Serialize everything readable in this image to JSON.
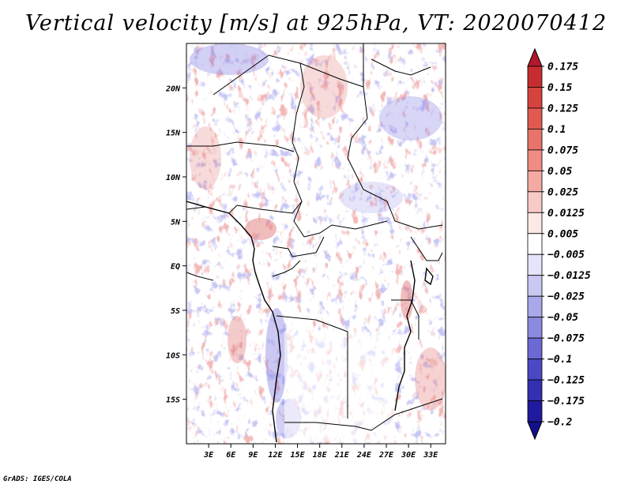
{
  "title": "Vertical velocity [m/s] at 925hPa, VT: 2020070412",
  "footer": "GrADS: IGES/COLA",
  "map": {
    "lon_range": [
      0,
      35
    ],
    "lat_range": [
      -20,
      25
    ],
    "lat_ticks": [
      {
        "value": 20,
        "label": "20N"
      },
      {
        "value": 15,
        "label": "15N"
      },
      {
        "value": 10,
        "label": "10N"
      },
      {
        "value": 5,
        "label": "5N"
      },
      {
        "value": 0,
        "label": "EQ"
      },
      {
        "value": -5,
        "label": "5S"
      },
      {
        "value": -10,
        "label": "10S"
      },
      {
        "value": -15,
        "label": "15S"
      }
    ],
    "lon_ticks": [
      {
        "value": 3,
        "label": "3E"
      },
      {
        "value": 6,
        "label": "6E"
      },
      {
        "value": 9,
        "label": "9E"
      },
      {
        "value": 12,
        "label": "12E"
      },
      {
        "value": 15,
        "label": "15E"
      },
      {
        "value": 18,
        "label": "18E"
      },
      {
        "value": 21,
        "label": "21E"
      },
      {
        "value": 24,
        "label": "24E"
      },
      {
        "value": 27,
        "label": "27E"
      },
      {
        "value": 30,
        "label": "30E"
      },
      {
        "value": 33,
        "label": "33E"
      }
    ]
  },
  "colorbar": {
    "levels": [
      "0.175",
      "0.15",
      "0.125",
      "0.1",
      "0.075",
      "0.05",
      "0.025",
      "0.0125",
      "0.005",
      "−0.005",
      "−0.0125",
      "−0.025",
      "−0.05",
      "−0.075",
      "−0.1",
      "−0.125",
      "−0.175",
      "−0.2"
    ],
    "colors": [
      "#b2182b",
      "#c62d30",
      "#d6433e",
      "#e05a52",
      "#e8736a",
      "#ef8c84",
      "#f4aaa3",
      "#f8cac5",
      "#fce8e5",
      "#ffffff",
      "#e4e4fa",
      "#c8c8f2",
      "#a9a8ea",
      "#8b89e0",
      "#6c69d4",
      "#4c48c4",
      "#3430b2",
      "#201a9e",
      "#12108a"
    ]
  },
  "colors": {
    "frame": "#000000",
    "positive": "#e06a6a",
    "negative": "#7d78e0"
  },
  "icons": {
    "colorbar_top_arrow": "triangle-up",
    "colorbar_bottom_arrow": "triangle-down"
  }
}
